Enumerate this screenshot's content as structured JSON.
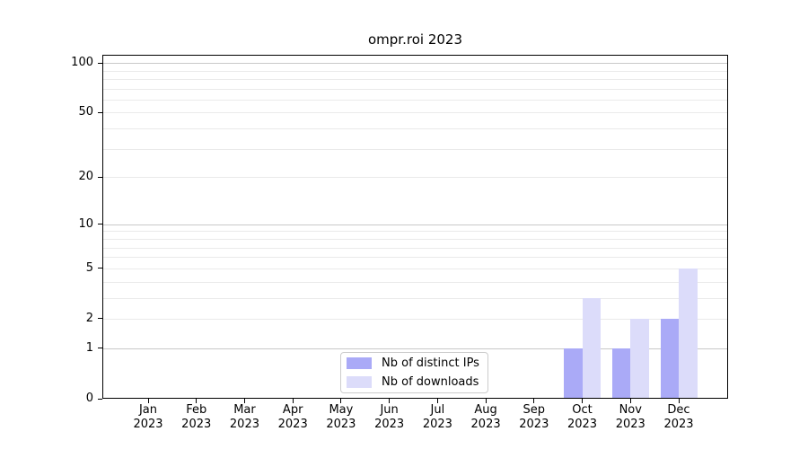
{
  "title": "ompr.roi 2023",
  "chart_data": {
    "type": "bar",
    "title": "ompr.roi 2023",
    "categories": [
      {
        "month": "Jan",
        "year": "2023"
      },
      {
        "month": "Feb",
        "year": "2023"
      },
      {
        "month": "Mar",
        "year": "2023"
      },
      {
        "month": "Apr",
        "year": "2023"
      },
      {
        "month": "May",
        "year": "2023"
      },
      {
        "month": "Jun",
        "year": "2023"
      },
      {
        "month": "Jul",
        "year": "2023"
      },
      {
        "month": "Aug",
        "year": "2023"
      },
      {
        "month": "Sep",
        "year": "2023"
      },
      {
        "month": "Oct",
        "year": "2023"
      },
      {
        "month": "Nov",
        "year": "2023"
      },
      {
        "month": "Dec",
        "year": "2023"
      }
    ],
    "series": [
      {
        "name": "Nb of distinct IPs",
        "color": "#aaaaf7",
        "values": [
          0,
          0,
          0,
          0,
          0,
          0,
          0,
          0,
          0,
          1,
          1,
          2
        ]
      },
      {
        "name": "Nb of downloads",
        "color": "#dcdcfa",
        "values": [
          0,
          0,
          0,
          0,
          0,
          0,
          0,
          0,
          0,
          3,
          2,
          5
        ]
      }
    ],
    "xlabel": "",
    "ylabel": "",
    "yscale": "log1p",
    "ylim": [
      0,
      112
    ],
    "y_ticks": [
      0,
      1,
      2,
      5,
      10,
      20,
      50,
      100
    ],
    "gridlines_major": [
      1,
      10,
      100
    ],
    "gridlines_minor": [
      2,
      3,
      4,
      5,
      6,
      7,
      8,
      9,
      20,
      30,
      40,
      50,
      60,
      70,
      80,
      90
    ],
    "grid": "horizontal",
    "legend_position": "inside-bottom-center"
  },
  "legend": {
    "items": [
      {
        "label": "Nb of distinct IPs",
        "color": "#aaaaf7"
      },
      {
        "label": "Nb of downloads",
        "color": "#dcdcfa"
      }
    ]
  },
  "colors": {
    "background": "#ffffff",
    "axis": "#000000",
    "grid_major": "#c8c8c8",
    "grid_minor": "#eaeaea",
    "legend_border": "#cccccc",
    "text": "#000000"
  }
}
